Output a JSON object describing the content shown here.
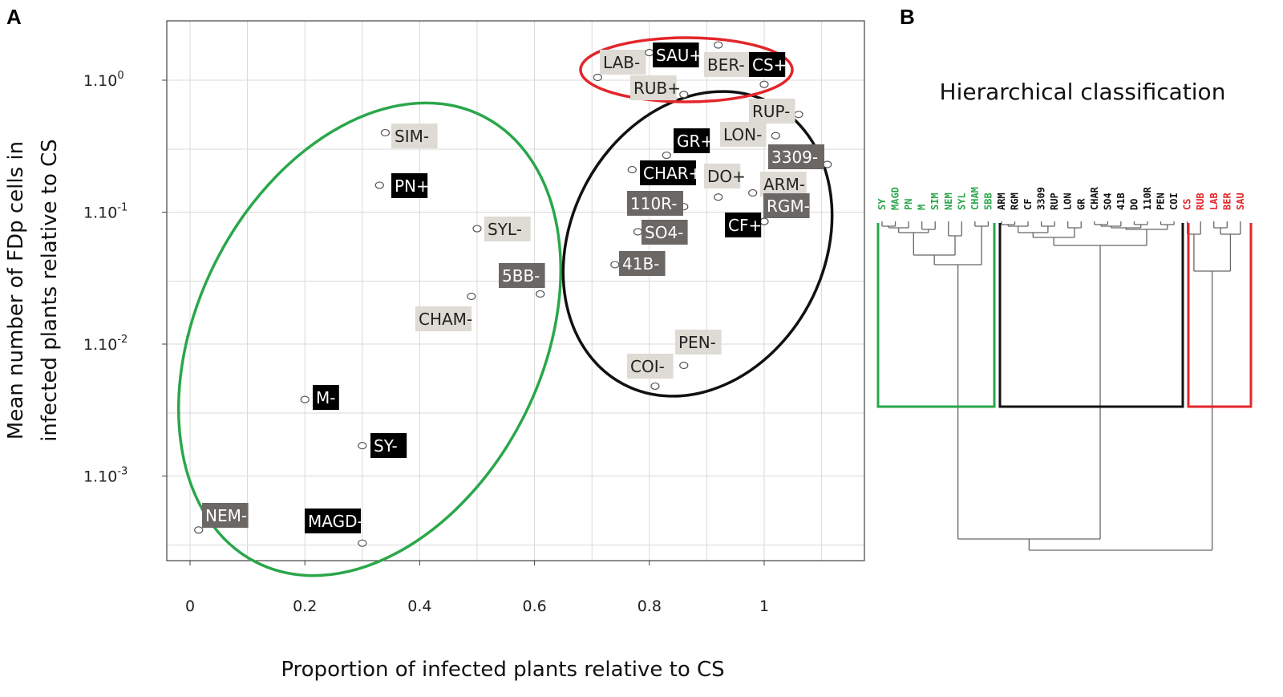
{
  "panel_a_letter": "A",
  "panel_b_letter": "B",
  "chart_data": [
    {
      "type": "scatter",
      "title": "",
      "xlabel": "Proportion of infected plants relative to CS",
      "ylabel": [
        "Mean number of FDp cells in",
        "infected plants relative to CS"
      ],
      "xlim": [
        -0.05,
        1.18
      ],
      "ylog10lim": [
        -3.65,
        0.42
      ],
      "xticks": [
        {
          "value": 0,
          "label": "0"
        },
        {
          "value": 0.2,
          "label": "0.2"
        },
        {
          "value": 0.4,
          "label": "0.4"
        },
        {
          "value": 0.6,
          "label": "0.6"
        },
        {
          "value": 0.8,
          "label": "0.8"
        },
        {
          "value": 1,
          "label": "1"
        }
      ],
      "yticks": [
        {
          "log10": 0,
          "base": "1.10",
          "exp": "0"
        },
        {
          "log10": -1,
          "base": "1.10",
          "exp": "-1"
        },
        {
          "log10": -2,
          "base": "1.10",
          "exp": "-2"
        },
        {
          "log10": -3,
          "base": "1.10",
          "exp": "-3"
        }
      ],
      "points": [
        {
          "label": "LAB-",
          "x": 0.71,
          "y": 1.05,
          "style": "light",
          "cluster": "red"
        },
        {
          "label": "SAU+",
          "x": 0.8,
          "y": 1.62,
          "style": "black",
          "cluster": "red"
        },
        {
          "label": "BER-",
          "x": 0.92,
          "y": 1.85,
          "style": "light",
          "cluster": "red"
        },
        {
          "label": "CS+",
          "x": 1.0,
          "y": 0.93,
          "style": "black",
          "cluster": "red"
        },
        {
          "label": "RUB+",
          "x": 0.86,
          "y": 0.78,
          "style": "light",
          "cluster": "red"
        },
        {
          "label": "RUP-",
          "x": 1.06,
          "y": 0.55,
          "style": "light",
          "cluster": "black"
        },
        {
          "label": "LON-",
          "x": 1.02,
          "y": 0.38,
          "style": "light",
          "cluster": "black"
        },
        {
          "label": "GR+",
          "x": 0.83,
          "y": 0.27,
          "style": "black",
          "cluster": "black"
        },
        {
          "label": "3309-",
          "x": 1.11,
          "y": 0.23,
          "style": "dark",
          "cluster": "black"
        },
        {
          "label": "CHAR+",
          "x": 0.77,
          "y": 0.21,
          "style": "black",
          "cluster": "black"
        },
        {
          "label": "DO+",
          "x": 0.92,
          "y": 0.13,
          "style": "light",
          "cluster": "black"
        },
        {
          "label": "ARM-",
          "x": 0.98,
          "y": 0.14,
          "style": "light",
          "cluster": "black"
        },
        {
          "label": "110R-",
          "x": 0.86,
          "y": 0.11,
          "style": "dark",
          "cluster": "black"
        },
        {
          "label": "RGM-",
          "x": 1.0,
          "y": 0.085,
          "style": "dark",
          "cluster": "black"
        },
        {
          "label": "CF+",
          "x": 1.0,
          "y": 0.085,
          "style": "black",
          "cluster": "black"
        },
        {
          "label": "SO4-",
          "x": 0.78,
          "y": 0.071,
          "style": "dark",
          "cluster": "black"
        },
        {
          "label": "41B-",
          "x": 0.74,
          "y": 0.04,
          "style": "dark",
          "cluster": "black"
        },
        {
          "label": "PEN-",
          "x": 0.86,
          "y": 0.0069,
          "style": "light",
          "cluster": "black"
        },
        {
          "label": "COI-",
          "x": 0.81,
          "y": 0.0048,
          "style": "light",
          "cluster": "black"
        },
        {
          "label": "SIM-",
          "x": 0.34,
          "y": 0.4,
          "style": "light",
          "cluster": "green"
        },
        {
          "label": "PN+",
          "x": 0.33,
          "y": 0.16,
          "style": "black",
          "cluster": "green"
        },
        {
          "label": "SYL-",
          "x": 0.5,
          "y": 0.075,
          "style": "light",
          "cluster": "green"
        },
        {
          "label": "5BB-",
          "x": 0.61,
          "y": 0.024,
          "style": "dark",
          "cluster": "green"
        },
        {
          "label": "CHAM-",
          "x": 0.49,
          "y": 0.023,
          "style": "light",
          "cluster": "green"
        },
        {
          "label": "M-",
          "x": 0.2,
          "y": 0.0038,
          "style": "black",
          "cluster": "green"
        },
        {
          "label": "SY-",
          "x": 0.3,
          "y": 0.0017,
          "style": "black",
          "cluster": "green"
        },
        {
          "label": "NEM-",
          "x": 0.015,
          "y": 0.00039,
          "style": "dark",
          "cluster": "green"
        },
        {
          "label": "MAGD-",
          "x": 0.3,
          "y": 0.00031,
          "style": "black",
          "cluster": "green"
        }
      ]
    },
    {
      "type": "dendrogram",
      "title": "Hierarchical classification",
      "clusters": [
        {
          "name": "green",
          "color": "#2aa74a",
          "leaves": [
            "SY",
            "MAGD",
            "PN",
            "M",
            "SIM",
            "NEM",
            "SYL",
            "CHAM",
            "5BB"
          ]
        },
        {
          "name": "black",
          "color": "#111111",
          "leaves": [
            "ARM",
            "RGM",
            "CF",
            "3309",
            "RUP",
            "LON",
            "GR",
            "CHAR",
            "SO4",
            "41B",
            "DO",
            "110R",
            "PEN",
            "COI"
          ]
        },
        {
          "name": "red",
          "color": "#e3262a",
          "leaves": [
            "CS",
            "RUB",
            "LAB",
            "BER",
            "SAU"
          ]
        }
      ]
    }
  ],
  "colors": {
    "green": "#2aa74a",
    "red": "#e3262a",
    "black": "#111111",
    "label_light": "#dedad4",
    "label_dark": "#6a6765",
    "label_black": "#000000",
    "grid": "#d9d9d9",
    "dendro": "#666666"
  }
}
